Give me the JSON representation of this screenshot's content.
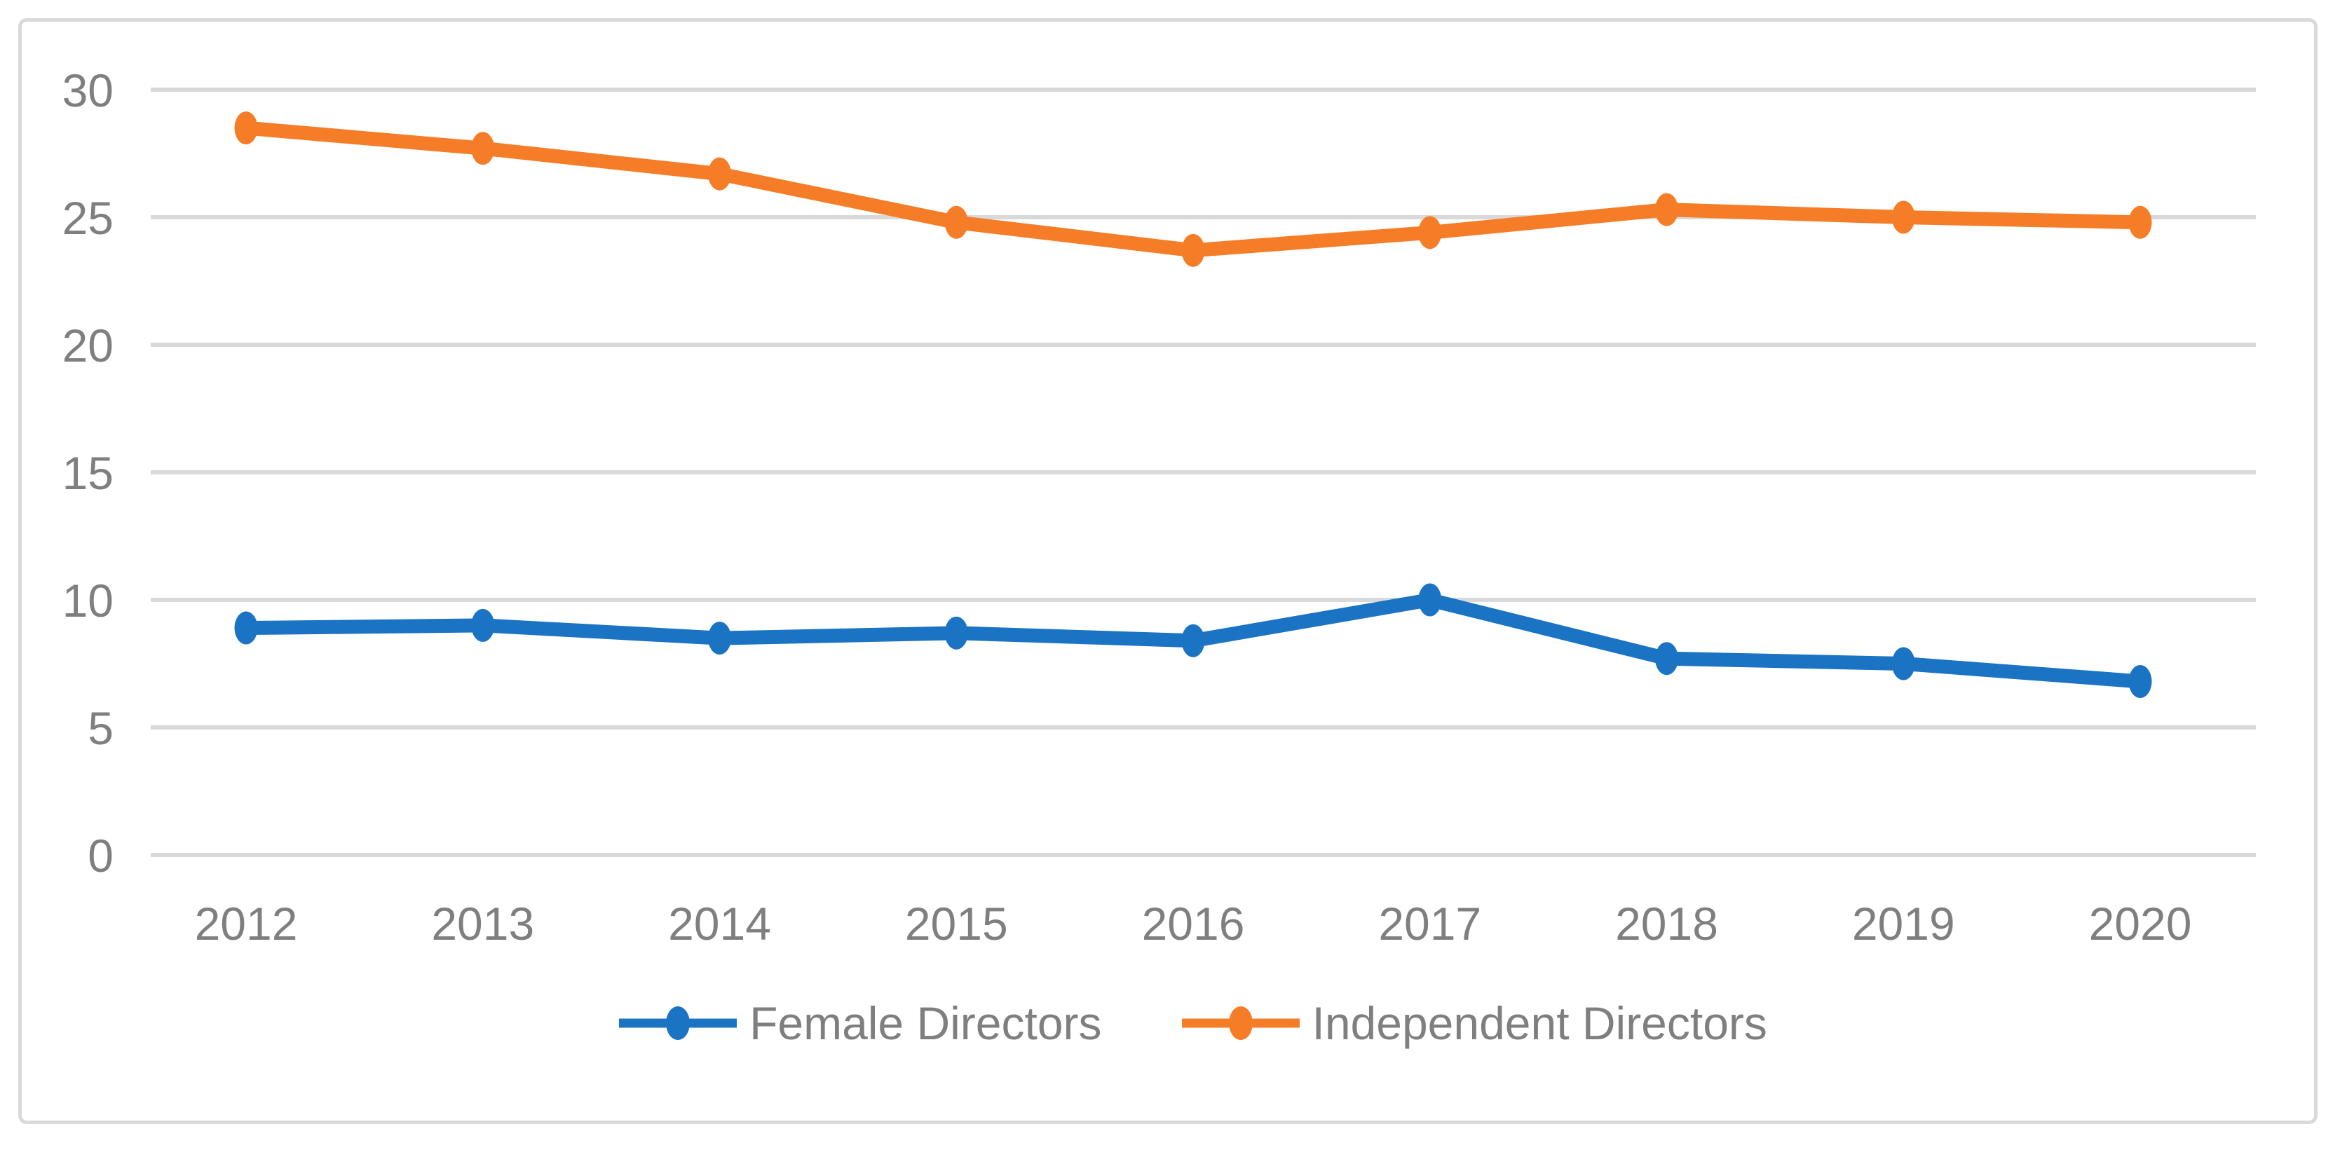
{
  "chart_data": {
    "type": "line",
    "title": "",
    "xlabel": "",
    "ylabel": "",
    "categories": [
      "2012",
      "2013",
      "2014",
      "2015",
      "2016",
      "2017",
      "2018",
      "2019",
      "2020"
    ],
    "series": [
      {
        "name": "Female Directors",
        "color": "#1b73c4",
        "values": [
          8.9,
          9.0,
          8.5,
          8.7,
          8.4,
          10.0,
          7.7,
          7.5,
          6.8
        ]
      },
      {
        "name": "Independent Directors",
        "color": "#f67d28",
        "values": [
          28.5,
          27.7,
          26.7,
          24.8,
          23.7,
          24.4,
          25.3,
          25.0,
          24.8
        ]
      }
    ],
    "y_ticks": [
      0,
      5,
      10,
      15,
      20,
      25,
      30
    ],
    "ylim": [
      0,
      31
    ],
    "grid": true,
    "legend_position": "bottom",
    "axis_label_color": "#7f7f7f",
    "gridline_color": "#d9d9d9",
    "figure_border_color": "#d9d9d9",
    "background_color": "#ffffff"
  }
}
